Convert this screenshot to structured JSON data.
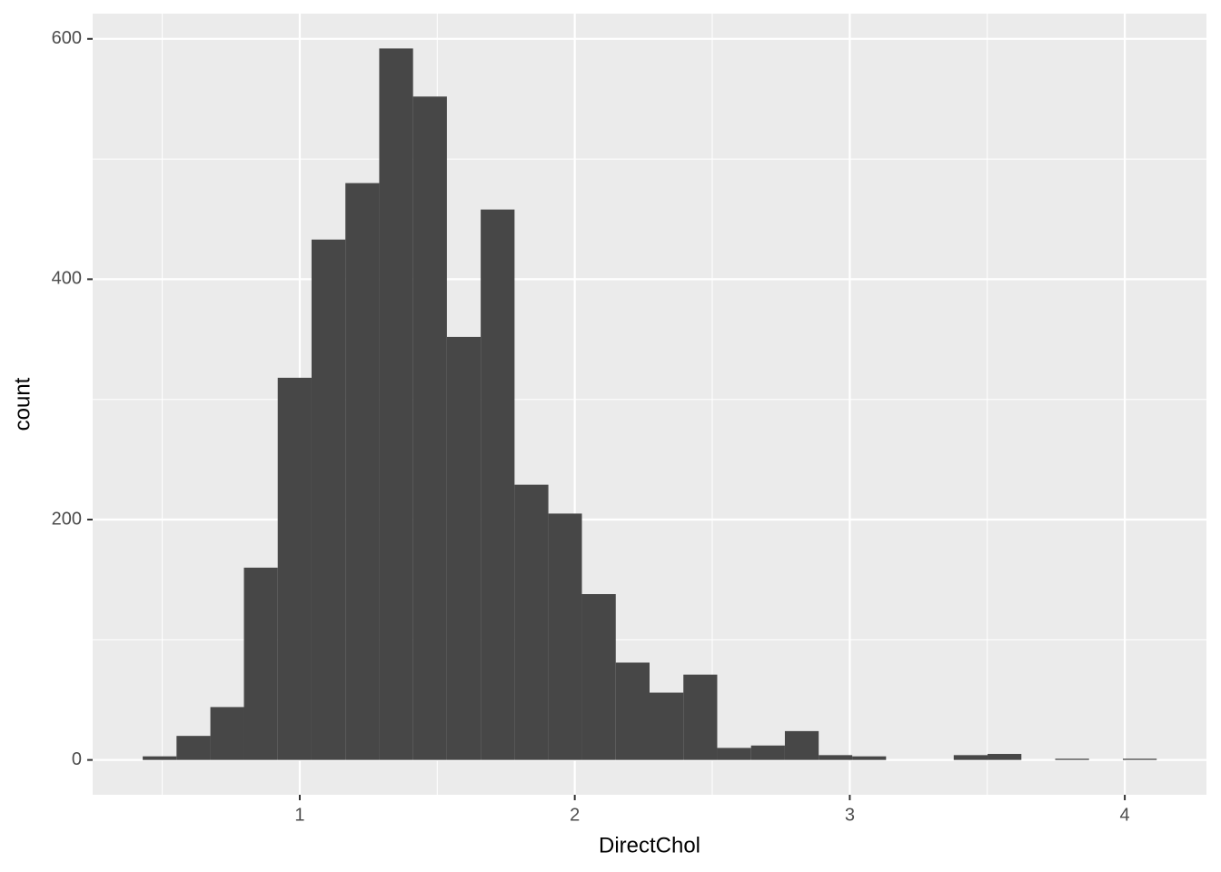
{
  "chart_data": {
    "type": "histogram",
    "x_label": "DirectChol",
    "y_label": "count",
    "bins": [
      0.429,
      0.552,
      0.675,
      0.797,
      0.92,
      1.043,
      1.166,
      1.289,
      1.412,
      1.535,
      1.658,
      1.781,
      1.904,
      2.026,
      2.149,
      2.272,
      2.395,
      2.518,
      2.641,
      2.764,
      2.887,
      3.009,
      3.132,
      3.255,
      3.378,
      3.501,
      3.624,
      3.747,
      3.87,
      3.993,
      4.116
    ],
    "counts": [
      3,
      20,
      44,
      160,
      318,
      433,
      480,
      592,
      552,
      352,
      458,
      229,
      205,
      138,
      81,
      56,
      71,
      10,
      12,
      24,
      4,
      3,
      0,
      0,
      4,
      5,
      0,
      1,
      0,
      1
    ],
    "color": "#474747",
    "xlim": [
      0.247,
      4.297
    ],
    "ylim": [
      -29,
      621
    ],
    "xticks": [
      1,
      2,
      3,
      4
    ],
    "yticks": [
      0,
      200,
      400,
      600
    ],
    "minor_xticks": [
      0.5,
      1.5,
      2.5,
      3.5
    ],
    "minor_yticks": [
      100,
      300,
      500
    ],
    "grid": true
  }
}
